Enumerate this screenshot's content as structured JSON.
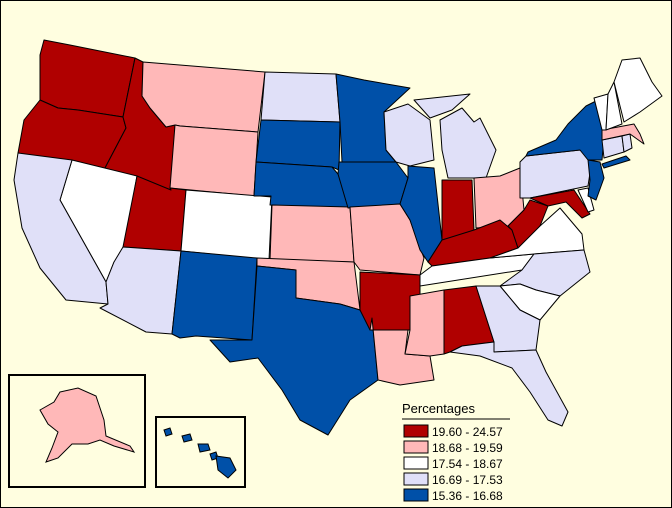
{
  "legend": {
    "title": "Percentages",
    "classes": [
      {
        "label": "19.60 - 24.57",
        "color": "#b00000"
      },
      {
        "label": "18.68 - 19.59",
        "color": "#ffb8b8"
      },
      {
        "label": "17.54 - 18.67",
        "color": "#ffffff"
      },
      {
        "label": "16.69 - 17.53",
        "color": "#e0e0f8"
      },
      {
        "label": "15.36 - 16.68",
        "color": "#0050a8"
      }
    ]
  },
  "states": {
    "WA": 0,
    "OR": 0,
    "ID": 0,
    "UT": 0,
    "IN": 0,
    "KY": 0,
    "WV": 0,
    "AL": 0,
    "AR": 0,
    "MD": 0,
    "MT": 1,
    "WY": 1,
    "KS": 1,
    "MO": 1,
    "OK": 1,
    "LA": 1,
    "MS": 1,
    "OH": 1,
    "MA": 1,
    "AK": 1,
    "NV": 2,
    "CO": 2,
    "TN": 2,
    "VA": 2,
    "SC": 2,
    "NH": 2,
    "VT": 2,
    "ME": 2,
    "DE": 2,
    "CA": 3,
    "AZ": 3,
    "ND": 3,
    "WI": 3,
    "MI": 3,
    "PA": 3,
    "NC": 3,
    "GA": 3,
    "FL": 3,
    "CT": 3,
    "RI": 3,
    "SD": 4,
    "NE": 4,
    "MN": 4,
    "IA": 4,
    "IL": 4,
    "NM": 4,
    "TX": 4,
    "NY": 4,
    "NJ": 4,
    "HI": 4
  }
}
